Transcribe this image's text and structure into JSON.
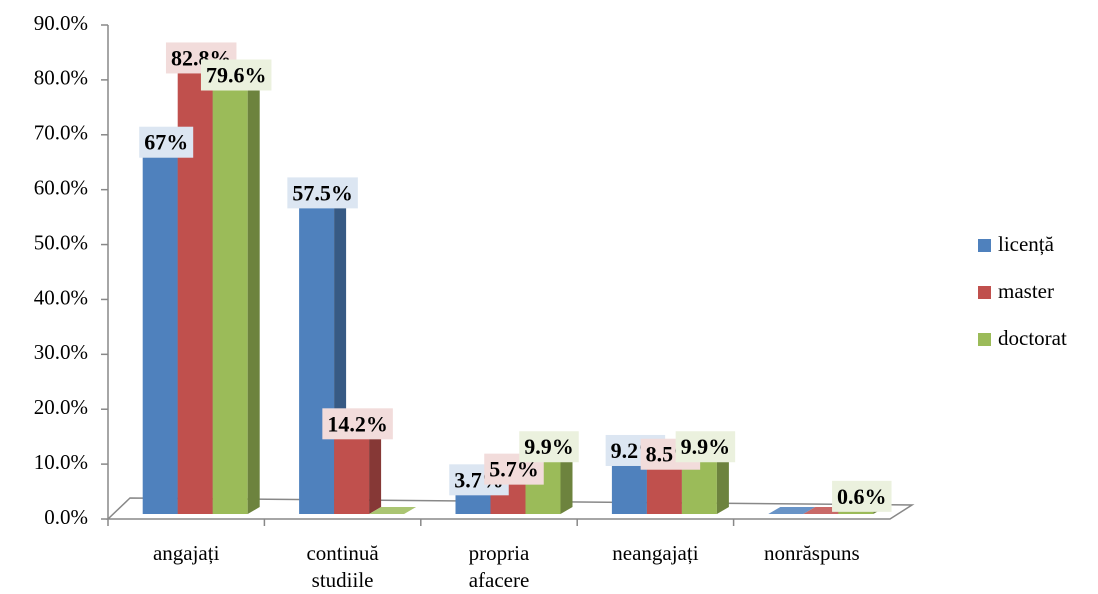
{
  "chart_data": {
    "type": "bar3d",
    "categories": [
      "angajați",
      "continuă studiile",
      "propria afacere",
      "neangajați",
      "nonrăspuns"
    ],
    "series": [
      {
        "name": "licență",
        "color": "#4f81bd",
        "values": [
          67,
          57.5,
          3.7,
          9.2,
          0
        ],
        "value_labels": [
          "67%",
          "57.5%",
          "3.7%",
          "9.2%",
          null
        ]
      },
      {
        "name": "master",
        "color": "#c0504d",
        "values": [
          82.8,
          14.2,
          5.7,
          8.5,
          0
        ],
        "value_labels": [
          "82.8%",
          "14.2%",
          "5.7%",
          "8.5%",
          null
        ]
      },
      {
        "name": "doctorat",
        "color": "#9bbb59",
        "values": [
          79.6,
          0,
          9.9,
          9.9,
          0.6
        ],
        "value_labels": [
          "79.6%",
          null,
          "9.9%",
          "9.9%",
          "0.6%"
        ]
      }
    ],
    "ylim": [
      0,
      90
    ],
    "yticks": [
      {
        "value": 0,
        "label": "0.0%"
      },
      {
        "value": 10,
        "label": "10.0%"
      },
      {
        "value": 20,
        "label": "20.0%"
      },
      {
        "value": 30,
        "label": "30.0%"
      },
      {
        "value": 40,
        "label": "40.0%"
      },
      {
        "value": 50,
        "label": "50.0%"
      },
      {
        "value": 60,
        "label": "60.0%"
      },
      {
        "value": 70,
        "label": "70.0%"
      },
      {
        "value": 80,
        "label": "80.0%"
      },
      {
        "value": 90,
        "label": "90.0%"
      }
    ],
    "label_backgrounds": [
      "#dce6f2",
      "#f2dcdb",
      "#ebf1de"
    ],
    "legend": "right"
  }
}
